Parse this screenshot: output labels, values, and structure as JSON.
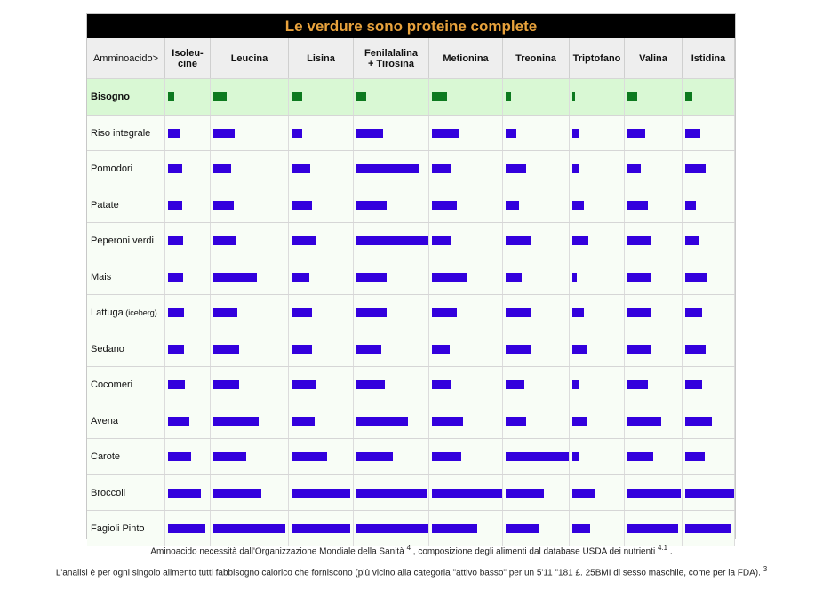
{
  "title": "Le verdure sono proteine complete",
  "header_first": "Amminoacido>",
  "columns": [
    "Isoleu-\ncine",
    "Leucina",
    "Lisina",
    "Fenilalalina\n+ Tirosina",
    "Metionina",
    "Treonina",
    "Triptofano",
    "Valina",
    "Istidina"
  ],
  "chart_data": {
    "type": "table",
    "columns": [
      "Isoleucine",
      "Leucina",
      "Lisina",
      "Fenilalalina + Tirosina",
      "Metionina",
      "Treonina",
      "Triptofano",
      "Valina",
      "Istidina"
    ],
    "unit": "fraction of column width",
    "rows": [
      {
        "label": "Bisogno",
        "note": "",
        "values": [
          0.15,
          0.18,
          0.18,
          0.13,
          0.22,
          0.09,
          0.06,
          0.18,
          0.15
        ]
      },
      {
        "label": "Riso integrale",
        "note": "",
        "values": [
          0.29,
          0.28,
          0.18,
          0.37,
          0.38,
          0.17,
          0.14,
          0.32,
          0.3
        ]
      },
      {
        "label": "Pomodori",
        "note": "",
        "values": [
          0.33,
          0.24,
          0.31,
          0.86,
          0.28,
          0.32,
          0.14,
          0.25,
          0.42
        ]
      },
      {
        "label": "Patate",
        "note": "",
        "values": [
          0.33,
          0.27,
          0.34,
          0.42,
          0.36,
          0.21,
          0.22,
          0.37,
          0.22
        ]
      },
      {
        "label": "Peperoni verdi",
        "note": "",
        "values": [
          0.36,
          0.31,
          0.4,
          1.0,
          0.28,
          0.39,
          0.31,
          0.42,
          0.28
        ]
      },
      {
        "label": "Mais",
        "note": "",
        "values": [
          0.36,
          0.58,
          0.29,
          0.42,
          0.51,
          0.26,
          0.09,
          0.45,
          0.46
        ]
      },
      {
        "label": "Lattuga",
        "note": "(iceberg)",
        "values": [
          0.38,
          0.32,
          0.34,
          0.42,
          0.36,
          0.39,
          0.23,
          0.45,
          0.35
        ]
      },
      {
        "label": "Sedano",
        "note": "",
        "values": [
          0.38,
          0.35,
          0.34,
          0.35,
          0.25,
          0.39,
          0.27,
          0.42,
          0.42
        ]
      },
      {
        "label": "Cocomeri",
        "note": "",
        "values": [
          0.4,
          0.35,
          0.4,
          0.4,
          0.28,
          0.29,
          0.14,
          0.37,
          0.35
        ]
      },
      {
        "label": "Avena",
        "note": "",
        "values": [
          0.5,
          0.61,
          0.38,
          0.72,
          0.44,
          0.32,
          0.27,
          0.62,
          0.55
        ]
      },
      {
        "label": "Carote",
        "note": "",
        "values": [
          0.55,
          0.44,
          0.58,
          0.5,
          0.42,
          1.0,
          0.14,
          0.47,
          0.4
        ]
      },
      {
        "label": "Broccoli",
        "note": "",
        "values": [
          0.78,
          0.64,
          0.95,
          0.97,
          1.0,
          0.6,
          0.45,
          0.98,
          1.0
        ]
      },
      {
        "label": "Fagioli Pinto",
        "note": "",
        "values": [
          0.9,
          0.97,
          0.95,
          1.0,
          0.65,
          0.52,
          0.35,
          0.93,
          0.95
        ]
      }
    ]
  },
  "captions": {
    "line1": "Aminoacido necessità dall'Organizzazione Mondiale della Sanità",
    "line1_sup1": "4",
    "line1_mid": " , composizione degli alimenti dal database USDA dei nutrienti",
    "line1_sup2": "4.1",
    "line1_end": " .",
    "line2": "L'analisi è per ogni singolo alimento tutti fabbisogno calorico che forniscono (più vicino alla categoria \"attivo basso\" per un 5'11 \"181 £. 25BMI di sesso maschile, come per la FDA).",
    "line2_sup": "3"
  },
  "colors": {
    "need_bar": "#0d7a1f",
    "food_bar": "#3300dd",
    "title_text": "#e8a23c",
    "title_bg": "#000000",
    "need_row_bg": "#d9f8d4"
  }
}
